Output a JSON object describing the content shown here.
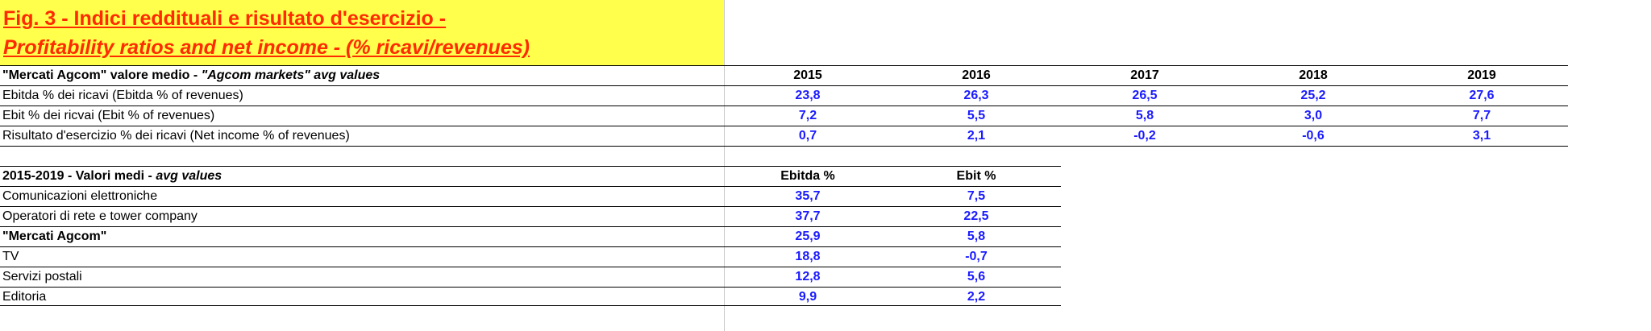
{
  "title": {
    "line1": "Fig. 3 -  Indici reddituali e risultato d'esercizio -",
    "line2": "Profitability ratios and net income - (% ricavi/revenues)"
  },
  "table1": {
    "header_bold": "\"Mercati Agcom\" valore medio  - ",
    "header_italic": "\"Agcom markets\" avg values",
    "years": [
      "2015",
      "2016",
      "2017",
      "2018",
      "2019"
    ],
    "rows": [
      {
        "label": "Ebitda % dei ricavi (Ebitda % of revenues)",
        "values": [
          "23,8",
          "26,3",
          "26,5",
          "25,2",
          "27,6"
        ]
      },
      {
        "label": "Ebit % dei ricvai (Ebit % of revenues)",
        "values": [
          "7,2",
          "5,5",
          "5,8",
          "3,0",
          "7,7"
        ]
      },
      {
        "label": "Risultato d'esercizio % dei ricavi (Net income % of revenues)",
        "values": [
          "0,7",
          "2,1",
          "-0,2",
          "-0,6",
          "3,1"
        ]
      }
    ]
  },
  "table2": {
    "header_bold": "2015-2019 - Valori medi - ",
    "header_italic": "avg values",
    "columns": [
      "Ebitda %",
      "Ebit %"
    ],
    "rows": [
      {
        "label": "Comunicazioni elettroniche",
        "values": [
          "35,7",
          "7,5"
        ],
        "bold": false
      },
      {
        "label": "Operatori di rete e tower company",
        "values": [
          "37,7",
          "22,5"
        ],
        "bold": false
      },
      {
        "label": "\"Mercati Agcom\"",
        "values": [
          "25,9",
          "5,8"
        ],
        "bold": true
      },
      {
        "label": "TV",
        "values": [
          "18,8",
          "-0,7"
        ],
        "bold": false
      },
      {
        "label": "Servizi postali",
        "values": [
          "12,8",
          "5,6"
        ],
        "bold": false
      },
      {
        "label": "Editoria",
        "values": [
          "9,9",
          "2,2"
        ],
        "bold": false
      }
    ]
  }
}
